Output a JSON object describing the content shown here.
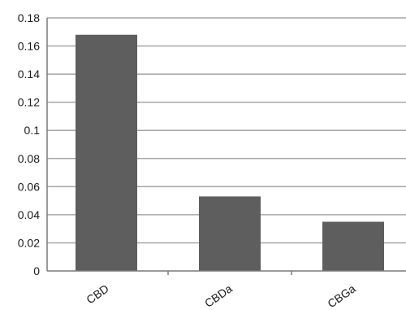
{
  "chart_data": {
    "type": "bar",
    "title": "",
    "xlabel": "",
    "ylabel": "",
    "categories": [
      "CBD",
      "CBDa",
      "CBGa"
    ],
    "values": [
      0.168,
      0.053,
      0.035
    ],
    "ylim": [
      0,
      0.18
    ],
    "yticks": [
      0,
      0.02,
      0.04,
      0.06,
      0.08,
      0.1,
      0.12,
      0.14,
      0.16,
      0.18
    ],
    "ytick_labels": [
      "0",
      "0.02",
      "0.04",
      "0.06",
      "0.08",
      "0.1",
      "0.12",
      "0.14",
      "0.16",
      "0.18"
    ],
    "grid": true,
    "legend": "none",
    "bar_color": "#5e5e5e"
  }
}
